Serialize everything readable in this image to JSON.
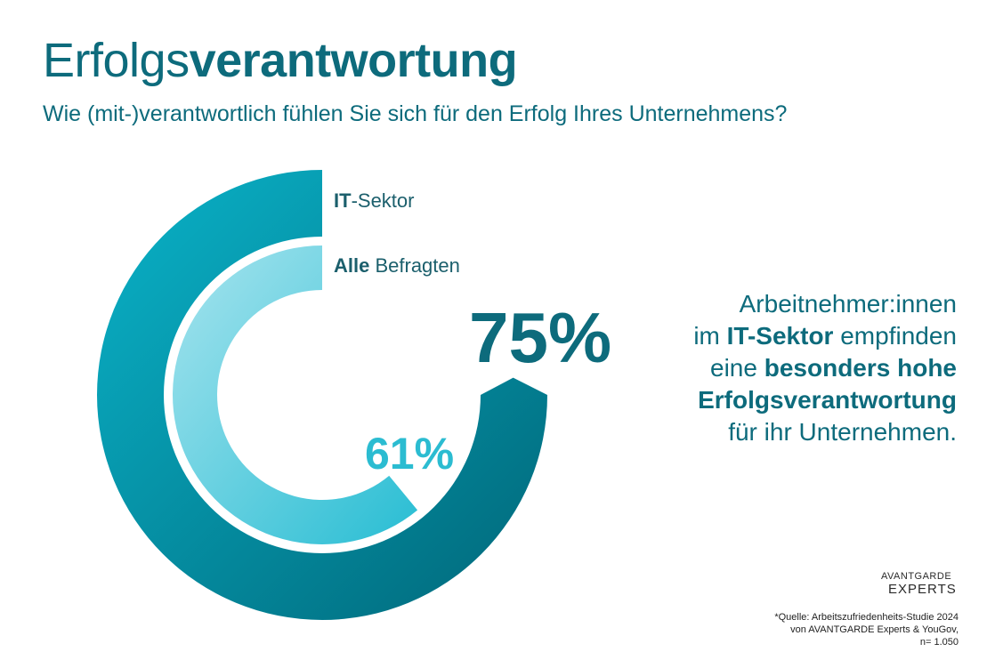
{
  "title": {
    "light": "Erfolgs",
    "bold": "verantwortung"
  },
  "subtitle": "Wie (mit-)verantwortlich fühlen Sie sich für den Erfolg Ihres Unternehmens?",
  "chart_data": {
    "type": "radial_bar",
    "series": [
      {
        "name_bold": "IT",
        "name_rest": "-Sektor",
        "value": 75,
        "label": "75%",
        "color_start": "#0ab3c9",
        "color_end": "#006779"
      },
      {
        "name_bold": "Alle",
        "name_rest": " Befragten",
        "value": 61,
        "label": "61%",
        "color_start": "#a7e4ee",
        "color_end": "#28bdd3"
      }
    ],
    "max": 100
  },
  "callout": {
    "line1": "Arbeitnehmer:innen",
    "line2_a": "im ",
    "line2_b": "IT-Sektor",
    "line2_c": " empfinden",
    "line3_a": "eine ",
    "line3_b": "besonders hohe",
    "line4": "Erfolgsverantwortung",
    "line5": "für ihr Unternehmen."
  },
  "logo": {
    "line1": "AVANTGARDE",
    "line2": "EXPERTS"
  },
  "source": {
    "line1": "*Quelle: Arbeitszufriedenheits-Studie 2024",
    "line2": "von AVANTGARDE Experts & YouGov,",
    "line3": "n= 1.050"
  }
}
